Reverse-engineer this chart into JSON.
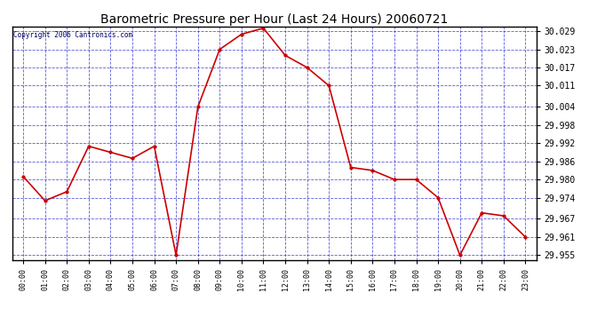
{
  "title": "Barometric Pressure per Hour (Last 24 Hours) 20060721",
  "copyright": "Copyright 2006 Cantronics.com",
  "hours": [
    "00:00",
    "01:00",
    "02:00",
    "03:00",
    "04:00",
    "05:00",
    "06:00",
    "07:00",
    "08:00",
    "09:00",
    "10:00",
    "11:00",
    "12:00",
    "13:00",
    "14:00",
    "15:00",
    "16:00",
    "17:00",
    "18:00",
    "19:00",
    "20:00",
    "21:00",
    "22:00",
    "23:00"
  ],
  "pressure": [
    29.981,
    29.973,
    29.976,
    29.991,
    29.989,
    29.987,
    29.991,
    29.955,
    30.004,
    30.023,
    30.028,
    30.03,
    30.021,
    30.017,
    30.011,
    29.984,
    29.983,
    29.98,
    29.98,
    29.974,
    29.955,
    29.969,
    29.968,
    29.961
  ],
  "ylim_min": 29.9535,
  "ylim_max": 30.0305,
  "yticks": [
    29.955,
    29.961,
    29.967,
    29.974,
    29.98,
    29.986,
    29.992,
    29.998,
    30.004,
    30.011,
    30.017,
    30.023,
    30.029
  ],
  "line_color": "#cc0000",
  "marker_color": "#cc0000",
  "bg_color": "#ffffff",
  "grid_color": "#3333cc",
  "title_color": "#000000",
  "border_color": "#000000",
  "copyright_color": "#000066"
}
